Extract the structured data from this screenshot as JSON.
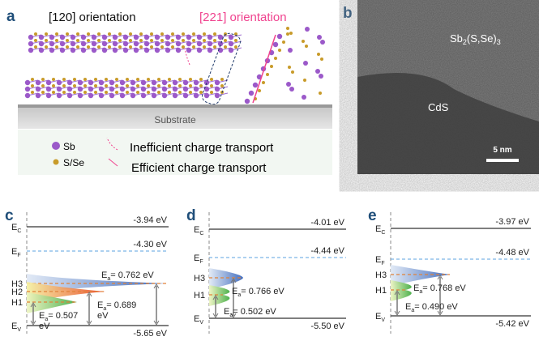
{
  "panel_a": {
    "label": "a",
    "orient120": "[120] orientation",
    "orient221": "[221] orientation",
    "substrate": "Substrate",
    "legend": {
      "sb": "Sb",
      "sse": "S/Se",
      "inefficient": "Inefficient charge transport",
      "efficient": "Efficient charge transport"
    }
  },
  "panel_b": {
    "label": "b",
    "material_top": "Sb",
    "material_top_sub": "2",
    "material_top_rest": "(S,Se)",
    "material_top_sub2": "3",
    "material_bottom": "CdS",
    "scale": "5 nm"
  },
  "panels": [
    {
      "label": "c",
      "ec": "-3.94 eV",
      "ef": "-4.30 eV",
      "ev": "-5.65 eV",
      "levels": [
        "H3",
        "H2",
        "H1"
      ],
      "ea": [
        "E",
        "a",
        "= 0.762 eV",
        "= 0.689",
        "eV",
        "= 0.507",
        "eV"
      ]
    },
    {
      "label": "d",
      "ec": "-4.01 eV",
      "ef": "-4.44 eV",
      "ev": "-5.50 eV",
      "levels": [
        "H3",
        "H1"
      ],
      "ea": [
        "= 0.766 eV",
        "= 0.502 eV"
      ]
    },
    {
      "label": "e",
      "ec": "-3.97 eV",
      "ef": "-4.48 eV",
      "ev": "-5.42 eV",
      "levels": [
        "H3",
        "H1"
      ],
      "ea": [
        "= 0.768 eV",
        "= 0.490 eV"
      ]
    }
  ],
  "axis": {
    "ec": "E",
    "ec_sub": "C",
    "ef": "E",
    "ef_sub": "F",
    "ev": "E",
    "ev_sub": "V",
    "ea": "E",
    "ea_sub": "a"
  },
  "colors": {
    "sb": "#9b59c9",
    "sse": "#c89b2a",
    "pink": "#f0438f",
    "panel_label": "#1f4e79",
    "ef_line": "#5ba3e0",
    "trap_line": "#e0823a"
  }
}
